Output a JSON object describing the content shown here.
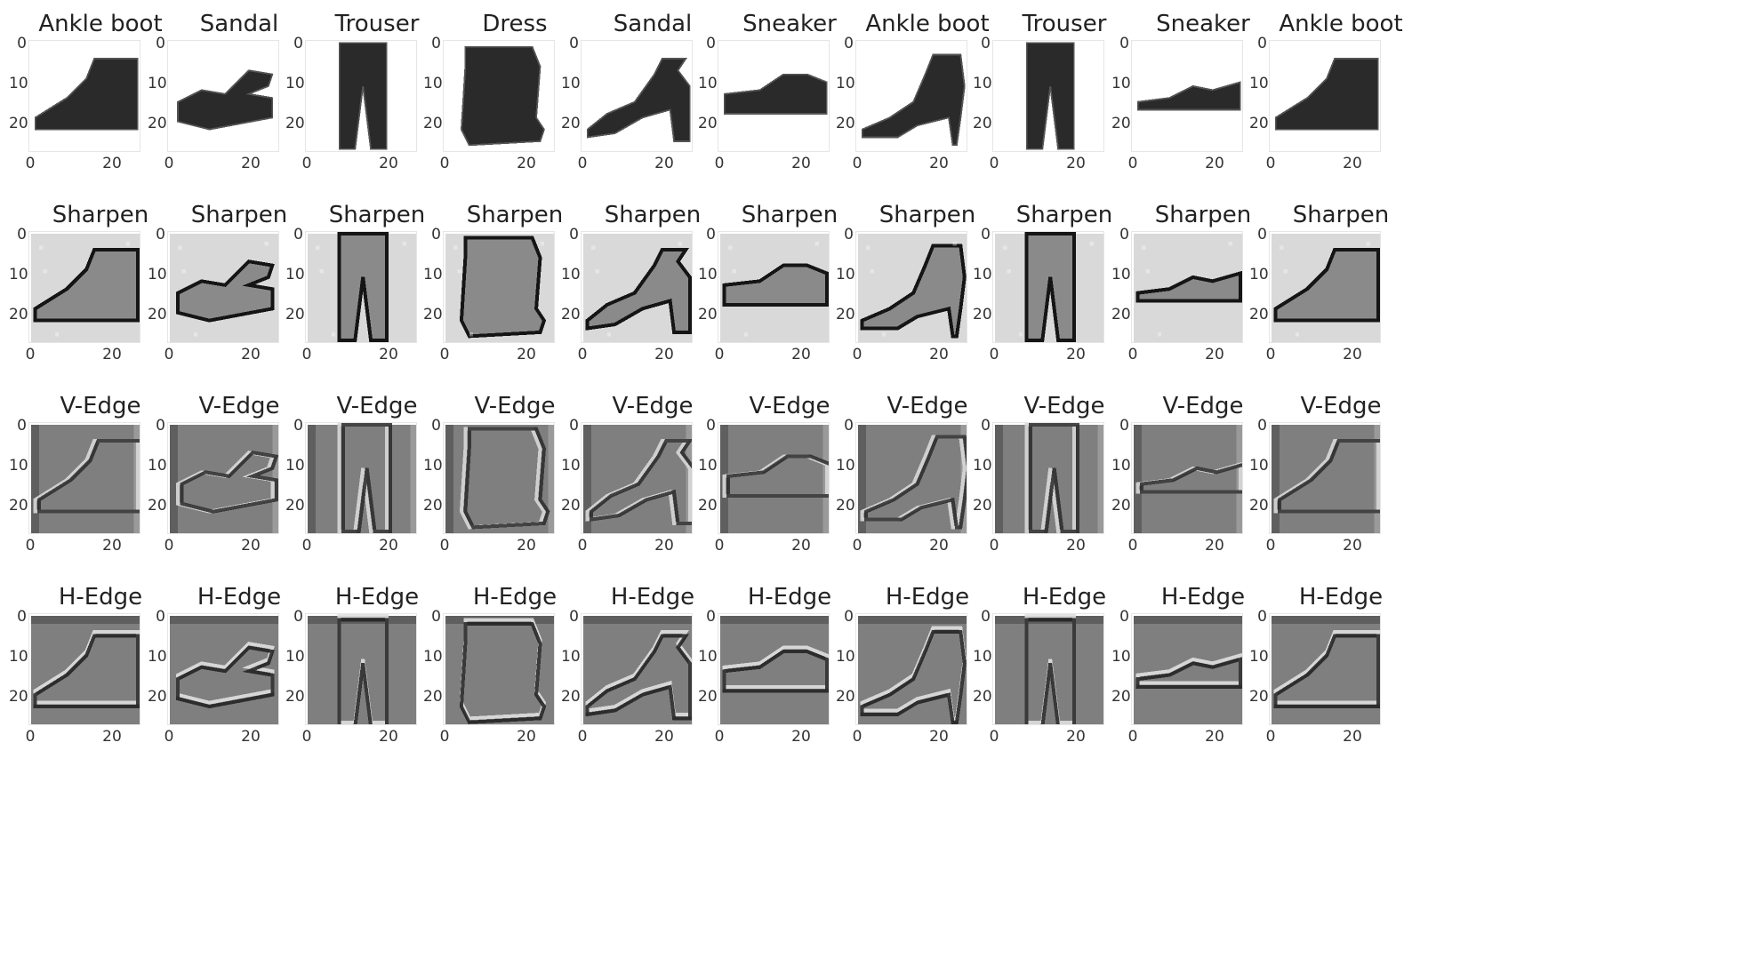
{
  "figure": {
    "rows": [
      {
        "kind": "original",
        "titles": [
          "Ankle boot",
          "Sandal",
          "Trouser",
          "Dress",
          "Sandal",
          "Sneaker",
          "Ankle boot",
          "Trouser",
          "Sneaker",
          "Ankle boot"
        ]
      },
      {
        "kind": "sharpen",
        "titles": [
          "Sharpen",
          "Sharpen",
          "Sharpen",
          "Sharpen",
          "Sharpen",
          "Sharpen",
          "Sharpen",
          "Sharpen",
          "Sharpen",
          "Sharpen"
        ]
      },
      {
        "kind": "vedge",
        "titles": [
          "V-Edge",
          "V-Edge",
          "V-Edge",
          "V-Edge",
          "V-Edge",
          "V-Edge",
          "V-Edge",
          "V-Edge",
          "V-Edge",
          "V-Edge"
        ]
      },
      {
        "kind": "hedge",
        "titles": [
          "H-Edge",
          "H-Edge",
          "H-Edge",
          "H-Edge",
          "H-Edge",
          "H-Edge",
          "H-Edge",
          "H-Edge",
          "H-Edge",
          "H-Edge"
        ]
      }
    ],
    "y_ticks": [
      "0",
      "10",
      "20"
    ],
    "x_ticks": [
      "0",
      "20"
    ],
    "items": [
      "ankle-boot",
      "sandal",
      "trouser",
      "dress",
      "sandal-heel",
      "sneaker",
      "heel-boot",
      "trouser",
      "sneaker-low",
      "ankle-boot-2"
    ]
  }
}
